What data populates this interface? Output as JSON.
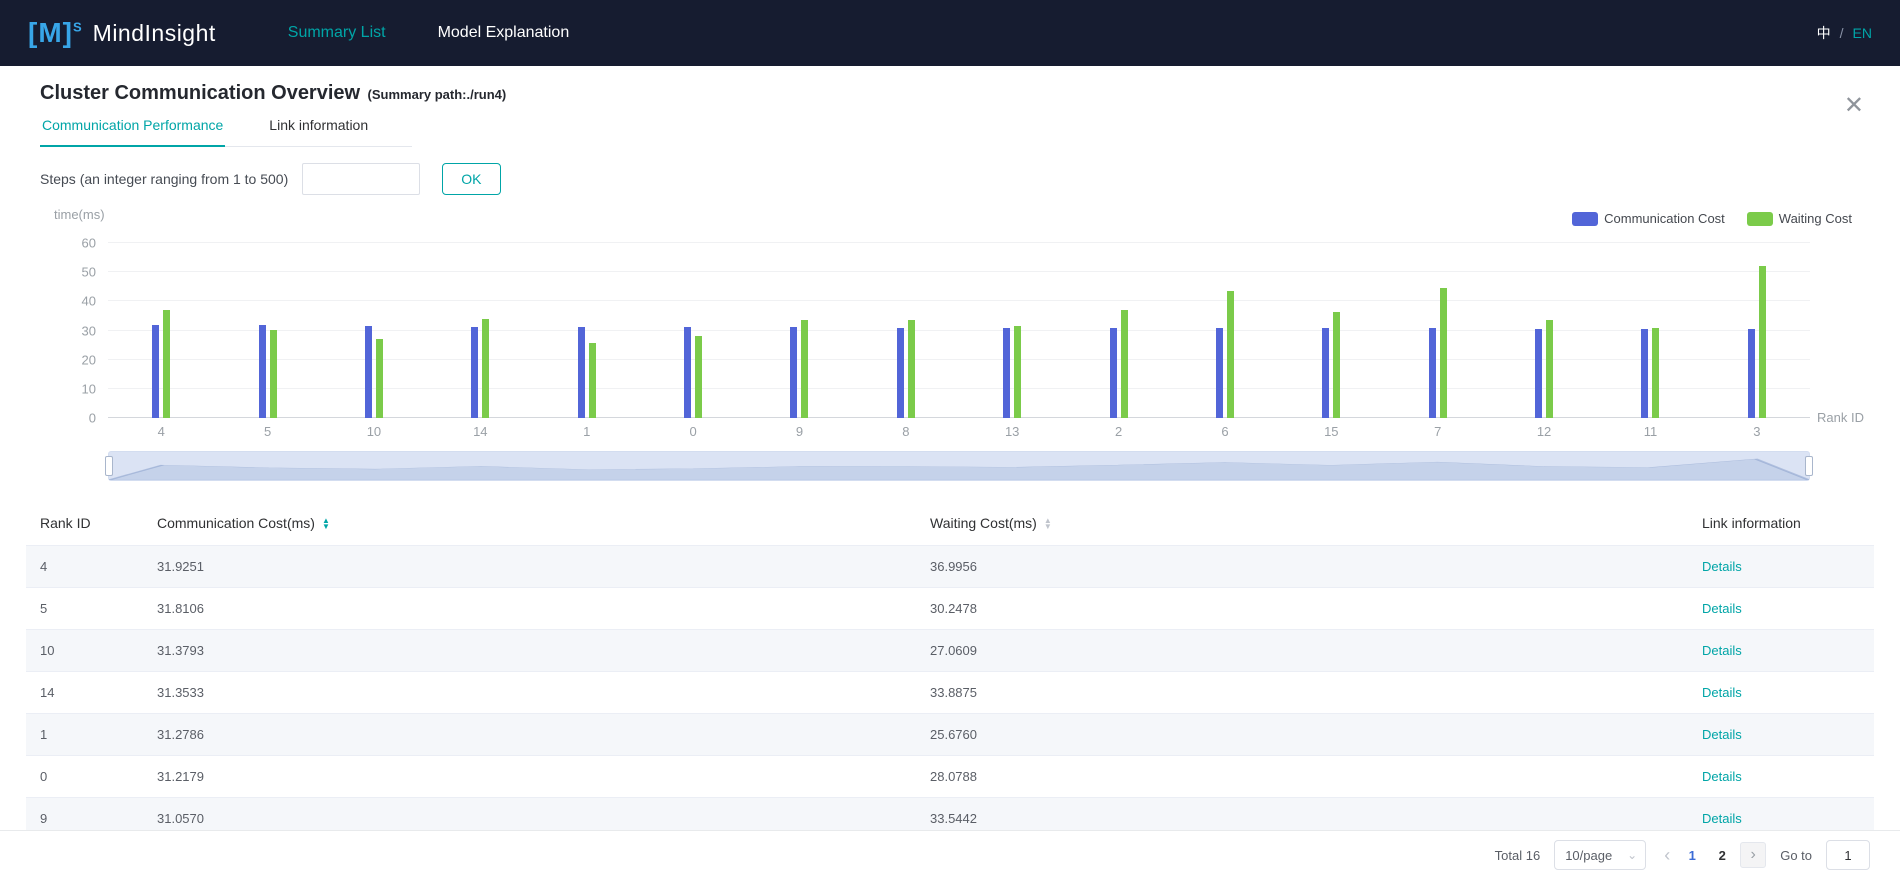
{
  "colors": {
    "accent_teal": "#00a5a7",
    "navbar_bg": "#161c30",
    "logo_blue": "#38a6e8",
    "bar_blue": "#5265d8",
    "bar_green": "#7bcb4a",
    "active_page_blue": "#3b6bd6",
    "stripe_gray": "#f5f7fa"
  },
  "navbar": {
    "logo": "[M]",
    "logo_sup": "S",
    "brand": "MindInsight",
    "tabs": [
      {
        "label": "Summary List",
        "active": true
      },
      {
        "label": "Model Explanation",
        "active": false
      }
    ],
    "lang_zh": "中",
    "lang_sep": "/",
    "lang_en": "EN"
  },
  "page": {
    "title": "Cluster Communication Overview",
    "summary_path": "(Summary path:./run4)",
    "tabs": [
      {
        "label": "Communication Performance",
        "active": true
      },
      {
        "label": "Link information",
        "active": false
      }
    ]
  },
  "steps": {
    "label": "Steps (an integer ranging from 1 to 500)",
    "value": "",
    "ok_label": "OK"
  },
  "chart_data": {
    "type": "bar",
    "title": "",
    "ylabel": "time(ms)",
    "xlabel": "Rank ID",
    "ylim": [
      0,
      60
    ],
    "yticks": [
      0,
      10,
      20,
      30,
      40,
      50,
      60
    ],
    "grid": true,
    "legend_position": "top-right",
    "categories": [
      "4",
      "5",
      "10",
      "14",
      "1",
      "0",
      "9",
      "8",
      "13",
      "2",
      "6",
      "15",
      "7",
      "12",
      "11",
      "3"
    ],
    "series": [
      {
        "name": "Communication Cost",
        "color": "#5265d8",
        "values": [
          31.9251,
          31.8106,
          31.3793,
          31.3533,
          31.2786,
          31.2179,
          31.057,
          31.0,
          30.95,
          30.9,
          30.85,
          30.8,
          30.7,
          30.65,
          30.6,
          30.55
        ]
      },
      {
        "name": "Waiting Cost",
        "color": "#7bcb4a",
        "values": [
          36.9956,
          30.2478,
          27.0609,
          33.8875,
          25.676,
          28.0788,
          33.5442,
          33.6,
          31.5,
          37.0,
          43.5,
          36.5,
          44.5,
          33.5,
          31.0,
          52.0
        ]
      }
    ]
  },
  "table": {
    "columns": [
      {
        "label": "Rank ID",
        "sortable": false,
        "sort_active": false
      },
      {
        "label": "Communication Cost(ms)",
        "sortable": true,
        "sort_active": true
      },
      {
        "label": "Waiting Cost(ms)",
        "sortable": true,
        "sort_active": false
      },
      {
        "label": "Link information",
        "sortable": false,
        "sort_active": false
      }
    ],
    "rows": [
      {
        "rank": "4",
        "comm": "31.9251",
        "wait": "36.9956",
        "link": "Details"
      },
      {
        "rank": "5",
        "comm": "31.8106",
        "wait": "30.2478",
        "link": "Details"
      },
      {
        "rank": "10",
        "comm": "31.3793",
        "wait": "27.0609",
        "link": "Details"
      },
      {
        "rank": "14",
        "comm": "31.3533",
        "wait": "33.8875",
        "link": "Details"
      },
      {
        "rank": "1",
        "comm": "31.2786",
        "wait": "25.6760",
        "link": "Details"
      },
      {
        "rank": "0",
        "comm": "31.2179",
        "wait": "28.0788",
        "link": "Details"
      },
      {
        "rank": "9",
        "comm": "31.0570",
        "wait": "33.5442",
        "link": "Details"
      }
    ]
  },
  "pagination": {
    "total_label": "Total 16",
    "page_size": "10/page",
    "pages": [
      "1",
      "2"
    ],
    "current_page": "1",
    "goto_label": "Go to",
    "goto_value": "1"
  },
  "icons": {
    "close": "✕",
    "prev": "‹",
    "next": "›",
    "select_arrow": "⌄",
    "sort_up": "▲",
    "sort_down": "▼"
  }
}
